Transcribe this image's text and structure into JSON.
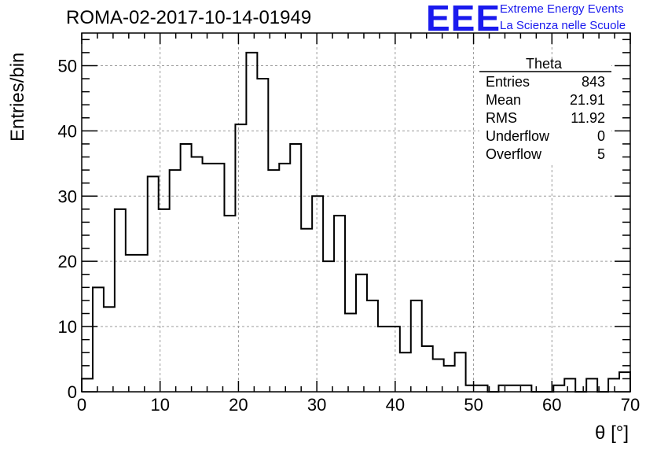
{
  "header": {
    "title": "ROMA-02-2017-10-14-01949",
    "logo_text": "EEE",
    "logo_line1": "Extreme Energy Events",
    "logo_line2": "La Scienza nelle Scuole",
    "logo_color": "#1a1aee"
  },
  "stats": {
    "title": "Theta",
    "rows": [
      {
        "label": "Entries",
        "value": "843"
      },
      {
        "label": "Mean",
        "value": "21.91"
      },
      {
        "label": "RMS",
        "value": "11.92"
      },
      {
        "label": "Underflow",
        "value": "0"
      },
      {
        "label": "Overflow",
        "value": "5"
      }
    ]
  },
  "chart_data": {
    "type": "histogram",
    "xlabel": "θ [°]",
    "ylabel": "Entries/bin",
    "xlim": [
      0,
      70
    ],
    "ylim": [
      0,
      55
    ],
    "grid": true,
    "bin_width": 1.4,
    "xticks": [
      0,
      10,
      20,
      30,
      40,
      50,
      60,
      70
    ],
    "yticks": [
      0,
      10,
      20,
      30,
      40,
      50
    ],
    "values": [
      2,
      16,
      13,
      28,
      21,
      21,
      33,
      28,
      34,
      38,
      36,
      35,
      35,
      27,
      41,
      52,
      48,
      34,
      35,
      38,
      25,
      30,
      20,
      27,
      12,
      18,
      14,
      10,
      10,
      6,
      14,
      7,
      5,
      4,
      6,
      1,
      1,
      0,
      1,
      1,
      1,
      0,
      0,
      1,
      2,
      0,
      2,
      0,
      2,
      3
    ]
  }
}
